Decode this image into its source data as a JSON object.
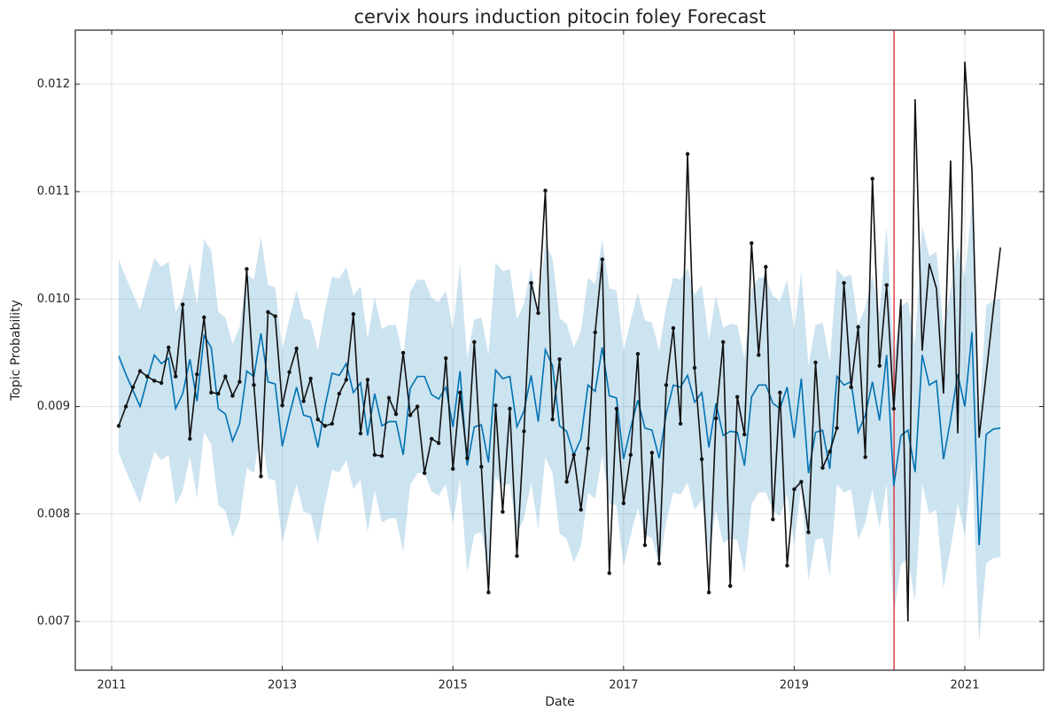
{
  "chart_data": {
    "type": "forecast",
    "title": "cervix hours induction pitocin foley Forecast",
    "xlabel": "Date",
    "ylabel": "Topic Probability",
    "xlim": [
      2010.574,
      2021.924
    ],
    "ylim": [
      0.006546,
      0.012503
    ],
    "xticks": [
      2011,
      2013,
      2015,
      2017,
      2019,
      2021
    ],
    "yticks": [
      0.007,
      0.008,
      0.009,
      {
        "value": 0.01,
        "label": "0.010"
      },
      0.011,
      0.012
    ],
    "grid": true,
    "vline": 2020.17,
    "vline_color": "#d62728",
    "x": [
      2011.083,
      2011.167,
      2011.25,
      2011.333,
      2011.417,
      2011.5,
      2011.583,
      2011.667,
      2011.75,
      2011.833,
      2011.917,
      2012,
      2012.083,
      2012.167,
      2012.25,
      2012.333,
      2012.417,
      2012.5,
      2012.583,
      2012.667,
      2012.75,
      2012.833,
      2012.917,
      2013,
      2013.083,
      2013.167,
      2013.25,
      2013.333,
      2013.417,
      2013.5,
      2013.583,
      2013.667,
      2013.75,
      2013.833,
      2013.917,
      2014,
      2014.083,
      2014.167,
      2014.25,
      2014.333,
      2014.417,
      2014.5,
      2014.583,
      2014.667,
      2014.75,
      2014.833,
      2014.917,
      2015,
      2015.083,
      2015.167,
      2015.25,
      2015.333,
      2015.417,
      2015.5,
      2015.583,
      2015.667,
      2015.75,
      2015.833,
      2015.917,
      2016,
      2016.083,
      2016.167,
      2016.25,
      2016.333,
      2016.417,
      2016.5,
      2016.583,
      2016.667,
      2016.75,
      2016.833,
      2016.917,
      2017,
      2017.083,
      2017.167,
      2017.25,
      2017.333,
      2017.417,
      2017.5,
      2017.583,
      2017.667,
      2017.75,
      2017.833,
      2017.917,
      2018,
      2018.083,
      2018.167,
      2018.25,
      2018.333,
      2018.417,
      2018.5,
      2018.583,
      2018.667,
      2018.75,
      2018.833,
      2018.917,
      2019,
      2019.083,
      2019.167,
      2019.25,
      2019.333,
      2019.417,
      2019.5,
      2019.583,
      2019.667,
      2019.75,
      2019.833,
      2019.917,
      2020,
      2020.083,
      2020.167,
      2020.25,
      2020.333,
      2020.417,
      2020.5,
      2020.583,
      2020.667,
      2020.75,
      2020.833,
      2020.917,
      2021,
      2021.083,
      2021.167,
      2021.25,
      2021.333,
      2021.417
    ],
    "band": {
      "color": "#0072B2",
      "upper": [
        0.01037,
        0.0102,
        0.01005,
        0.0099,
        0.01015,
        0.01038,
        0.0103,
        0.01035,
        0.00988,
        0.01002,
        0.01034,
        0.00995,
        0.01056,
        0.01045,
        0.00988,
        0.00983,
        0.00958,
        0.00974,
        0.01023,
        0.01018,
        0.01058,
        0.01013,
        0.01011,
        0.00953,
        0.00982,
        0.01008,
        0.00982,
        0.0098,
        0.00952,
        0.0099,
        0.01021,
        0.01019,
        0.0103,
        0.01003,
        0.01012,
        0.00963,
        0.01002,
        0.00972,
        0.00976,
        0.00976,
        0.00945,
        0.01007,
        0.01018,
        0.01018,
        0.01001,
        0.00997,
        0.01008,
        0.00971,
        0.01033,
        0.00945,
        0.00981,
        0.00983,
        0.00948,
        0.01034,
        0.01026,
        0.01028,
        0.00981,
        0.00996,
        0.01029,
        0.00986,
        0.01053,
        0.01038,
        0.00982,
        0.00977,
        0.00955,
        0.0097,
        0.0102,
        0.01014,
        0.01055,
        0.0101,
        0.01008,
        0.00951,
        0.0098,
        0.01006,
        0.0098,
        0.00978,
        0.00952,
        0.00993,
        0.0102,
        0.01018,
        0.01029,
        0.01004,
        0.01013,
        0.00962,
        0.01003,
        0.00973,
        0.00977,
        0.00976,
        0.00945,
        0.01009,
        0.0102,
        0.0102,
        0.01003,
        0.00998,
        0.01018,
        0.00971,
        0.01026,
        0.00938,
        0.00976,
        0.00978,
        0.00942,
        0.01028,
        0.0102,
        0.01023,
        0.00976,
        0.00992,
        0.01023,
        0.00987,
        0.01068,
        0.00946,
        0.00993,
        0.00998,
        0.00959,
        0.01068,
        0.0104,
        0.01044,
        0.00971,
        0.01008,
        0.0105,
        0.0102,
        0.01089,
        0.00891,
        0.00994,
        0.00999,
        0.01
      ],
      "lower": [
        0.00857,
        0.0084,
        0.00825,
        0.0081,
        0.00835,
        0.00858,
        0.0085,
        0.00855,
        0.00808,
        0.00822,
        0.00854,
        0.00815,
        0.00876,
        0.00865,
        0.00808,
        0.00803,
        0.00778,
        0.00794,
        0.00843,
        0.00838,
        0.00878,
        0.00833,
        0.00831,
        0.00773,
        0.00802,
        0.00828,
        0.00802,
        0.008,
        0.00772,
        0.0081,
        0.00841,
        0.00839,
        0.0085,
        0.00823,
        0.00832,
        0.00783,
        0.00822,
        0.00792,
        0.00796,
        0.00796,
        0.00765,
        0.00827,
        0.00838,
        0.00838,
        0.00821,
        0.00817,
        0.00828,
        0.00791,
        0.00833,
        0.00745,
        0.00781,
        0.00783,
        0.00748,
        0.00834,
        0.00826,
        0.00828,
        0.00781,
        0.00796,
        0.00829,
        0.00786,
        0.00853,
        0.00838,
        0.00782,
        0.00777,
        0.00755,
        0.0077,
        0.0082,
        0.00814,
        0.00855,
        0.0081,
        0.00808,
        0.00751,
        0.0078,
        0.00806,
        0.0078,
        0.00778,
        0.00752,
        0.00793,
        0.0082,
        0.00818,
        0.00829,
        0.00804,
        0.00813,
        0.00762,
        0.00803,
        0.00773,
        0.00777,
        0.00776,
        0.00745,
        0.00809,
        0.0082,
        0.0082,
        0.00803,
        0.00798,
        0.00818,
        0.00771,
        0.00826,
        0.00738,
        0.00776,
        0.00778,
        0.00742,
        0.00828,
        0.0082,
        0.00823,
        0.00776,
        0.00792,
        0.00823,
        0.00787,
        0.00828,
        0.00706,
        0.00753,
        0.00758,
        0.00719,
        0.00828,
        0.008,
        0.00804,
        0.00731,
        0.00768,
        0.0081,
        0.0078,
        0.00849,
        0.00681,
        0.00754,
        0.00759,
        0.0076
      ]
    },
    "series": [
      {
        "color": "#0072B2",
        "markers": false,
        "values": [
          0.00947,
          0.0093,
          0.00915,
          0.009,
          0.00925,
          0.00948,
          0.0094,
          0.00945,
          0.00898,
          0.00912,
          0.00944,
          0.00905,
          0.00966,
          0.00955,
          0.00898,
          0.00893,
          0.00868,
          0.00884,
          0.00933,
          0.00928,
          0.00968,
          0.00923,
          0.00921,
          0.00863,
          0.00892,
          0.00918,
          0.00892,
          0.0089,
          0.00862,
          0.009,
          0.00931,
          0.00929,
          0.0094,
          0.00913,
          0.00922,
          0.00873,
          0.00912,
          0.00882,
          0.00886,
          0.00886,
          0.00855,
          0.00917,
          0.00928,
          0.00928,
          0.00911,
          0.00907,
          0.00918,
          0.00881,
          0.00933,
          0.00845,
          0.00881,
          0.00883,
          0.00848,
          0.00934,
          0.00926,
          0.00928,
          0.00881,
          0.00896,
          0.00929,
          0.00886,
          0.00953,
          0.00938,
          0.00882,
          0.00877,
          0.00855,
          0.0087,
          0.0092,
          0.00914,
          0.00955,
          0.0091,
          0.00908,
          0.00851,
          0.0088,
          0.00906,
          0.0088,
          0.00878,
          0.00852,
          0.00893,
          0.0092,
          0.00918,
          0.00929,
          0.00904,
          0.00913,
          0.00862,
          0.00903,
          0.00873,
          0.00877,
          0.00876,
          0.00845,
          0.00909,
          0.0092,
          0.0092,
          0.00903,
          0.00898,
          0.00918,
          0.00871,
          0.00926,
          0.00838,
          0.00876,
          0.00878,
          0.00842,
          0.00928,
          0.0092,
          0.00923,
          0.00876,
          0.00892,
          0.00923,
          0.00887,
          0.00948,
          0.00826,
          0.00873,
          0.00878,
          0.00839,
          0.00948,
          0.0092,
          0.00924,
          0.00851,
          0.00888,
          0.0093,
          0.009,
          0.00969,
          0.00771,
          0.00874,
          0.00879,
          0.0088
        ]
      },
      {
        "color": "#111111",
        "markers": true,
        "values": [
          0.00882,
          0.009,
          0.00918,
          0.00933,
          0.00928,
          0.00924,
          0.00922,
          0.00955,
          0.00928,
          0.00995,
          0.0087,
          0.0093,
          0.00983,
          0.00913,
          0.00912,
          0.00928,
          0.0091,
          0.00923,
          0.01028,
          0.0092,
          0.00835,
          0.00988,
          0.00984,
          0.00901,
          0.00932,
          0.00954,
          0.00905,
          0.00926,
          0.00888,
          0.00882,
          0.00884,
          0.00912,
          0.00925,
          0.00986,
          0.00875,
          0.00925,
          0.00855,
          0.00854,
          0.00908,
          0.00893,
          0.0095,
          0.00892,
          0.009,
          0.00838,
          0.0087,
          0.00866,
          0.00945,
          0.00842,
          0.00913,
          0.00852,
          0.0096,
          0.00844,
          0.00727,
          0.00901,
          0.00802,
          0.00898,
          0.00761,
          0.00877,
          0.01015,
          0.00987,
          0.01101,
          0.00888,
          0.00944,
          0.0083,
          0.00855,
          0.00804,
          0.00861,
          0.00969,
          0.01037,
          0.00745,
          0.00898,
          0.0081,
          0.00855,
          0.00949,
          0.00771,
          0.00857,
          0.00754,
          0.0092,
          0.00973,
          0.00884,
          0.01135,
          0.00936,
          0.00851,
          0.00727,
          0.00889,
          0.0096,
          0.00733,
          0.00909,
          0.00874,
          0.01052,
          0.00948,
          0.0103,
          0.00795,
          0.00913,
          0.00752,
          0.00823,
          0.0083,
          0.00783,
          0.00941,
          0.00843,
          0.00858,
          0.0088,
          0.01015,
          0.00918,
          0.00974,
          0.00853,
          0.01112,
          0.00938,
          0.01013,
          0.00898,
          0.01,
          0.007,
          0.01186,
          0.00952,
          0.01033,
          0.0101,
          0.00912,
          0.01129,
          0.00875,
          0.01221,
          0.0112,
          0.00871,
          0.0093,
          0.0099,
          0.01048
        ]
      }
    ]
  }
}
